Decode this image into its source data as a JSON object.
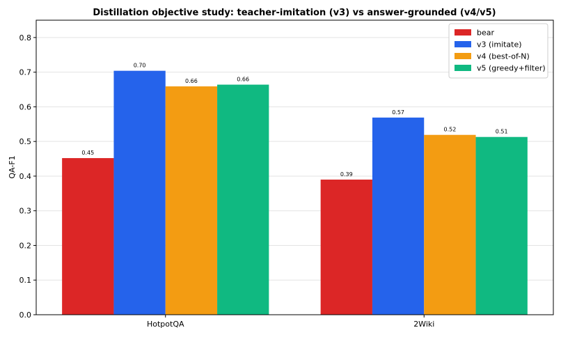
{
  "chart_data": {
    "type": "bar",
    "title": "Distillation objective study: teacher-imitation (v3) vs answer-grounded (v4/v5)",
    "xlabel": "",
    "ylabel": "QA-F1",
    "ylim": [
      0,
      0.85
    ],
    "yticks": [
      "0.0",
      "0.1",
      "0.2",
      "0.3",
      "0.4",
      "0.5",
      "0.6",
      "0.7",
      "0.8"
    ],
    "grid": "horizontal",
    "legend_position": "top-right",
    "categories": [
      "HotpotQA",
      "2Wiki"
    ],
    "series": [
      {
        "name": "bear",
        "color": "#dc2626",
        "values": [
          0.452,
          0.39
        ],
        "labels": [
          "0.45",
          "0.39"
        ]
      },
      {
        "name": "v3 (imitate)",
        "color": "#2563eb",
        "values": [
          0.704,
          0.569
        ],
        "labels": [
          "0.70",
          "0.57"
        ]
      },
      {
        "name": "v4 (best-of-N)",
        "color": "#f39c12",
        "values": [
          0.659,
          0.519
        ],
        "labels": [
          "0.66",
          "0.52"
        ]
      },
      {
        "name": "v5 (greedy+filter)",
        "color": "#10b981",
        "values": [
          0.664,
          0.513
        ],
        "labels": [
          "0.66",
          "0.51"
        ]
      }
    ]
  }
}
